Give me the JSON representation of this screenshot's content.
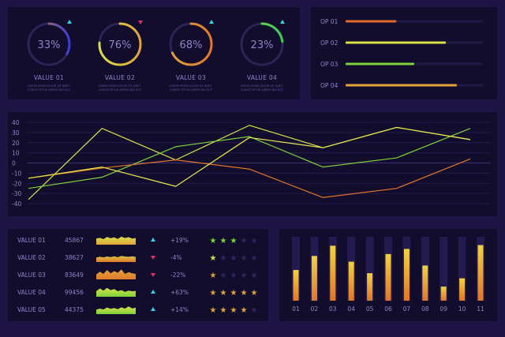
{
  "colors": {
    "background": "#1e1545",
    "panel": "#120d2c",
    "track": "#2b2456",
    "label": "#8d86c9",
    "yellow": "#d8e04a",
    "green": "#7ed23a",
    "orange": "#e2762a",
    "cyan": "#34d3e6",
    "magenta": "#e0306e"
  },
  "gauges": [
    {
      "value_pct": 33,
      "label": "33%",
      "name": "VALUE 01",
      "arrow": "up",
      "caption": "LOREM IPSUM DOLOR SIT AMET, CONSECTETUR ADIPISCING ELIT",
      "gradient": [
        "#3a3fd6",
        "#e07a2a"
      ]
    },
    {
      "value_pct": 76,
      "label": "76%",
      "name": "VALUE 02",
      "arrow": "down",
      "caption": "LOREM IPSUM DOLOR SIT AMET, CONSECTETUR ADIPISCING ELIT",
      "gradient": [
        "#e0a43a",
        "#d8e04a"
      ]
    },
    {
      "value_pct": 68,
      "label": "68%",
      "name": "VALUE 03",
      "arrow": "up",
      "caption": "LOREM IPSUM DOLOR SIT AMET, CONSECTETUR ADIPISCING ELIT",
      "gradient": [
        "#e07a2a",
        "#e0a43a"
      ]
    },
    {
      "value_pct": 23,
      "label": "23%",
      "name": "VALUE 04",
      "arrow": "up",
      "caption": "LOREM IPSUM DOLOR SIT AMET, CONSECTETUR ADIPISCING ELIT",
      "gradient": [
        "#3acd5a",
        "#7ed23a"
      ]
    }
  ],
  "ops": [
    {
      "label": "OP 01",
      "fraction": 0.37,
      "color": "#e06a2a"
    },
    {
      "label": "OP 02",
      "fraction": 0.73,
      "color": "#d8e04a"
    },
    {
      "label": "OP 03",
      "fraction": 0.5,
      "color": "#7ed23a"
    },
    {
      "label": "OP 04",
      "fraction": 0.81,
      "color": "#e0a43a"
    }
  ],
  "chart_data": [
    {
      "type": "line",
      "yticks": [
        "40",
        "30",
        "20",
        "10",
        "0",
        "-10",
        "-20",
        "-30",
        "-40"
      ],
      "ylim": [
        -40,
        40
      ],
      "x": [
        0,
        1,
        2,
        3,
        4,
        5,
        6
      ],
      "grid": true,
      "series": [
        {
          "color": "#d8e04a",
          "values": [
            -36,
            34,
            3,
            37,
            15,
            35,
            23
          ]
        },
        {
          "color": "#7ed23a",
          "values": [
            -25,
            -14,
            16,
            26,
            -4,
            5,
            34
          ]
        },
        {
          "color": "#e2762a",
          "values": [
            -15,
            -5,
            3,
            -6,
            -34,
            -25,
            4
          ]
        },
        {
          "color": "#e8e84e",
          "values": [
            -15,
            -4,
            -23,
            25,
            15,
            35,
            23
          ]
        }
      ]
    },
    {
      "type": "bar",
      "categories": [
        "01",
        "02",
        "03",
        "04",
        "05",
        "06",
        "07",
        "08",
        "09",
        "10",
        "11"
      ],
      "values": [
        0.48,
        0.7,
        0.86,
        0.61,
        0.43,
        0.73,
        0.81,
        0.55,
        0.22,
        0.35,
        0.87
      ],
      "ylim": [
        0,
        1
      ]
    }
  ],
  "table": {
    "rows": [
      {
        "name": "VALUE 01",
        "number": "45867",
        "arrow": "up",
        "change": "+19%",
        "stars": 3,
        "star_color": "#7ed23a",
        "spark": [
          0.55,
          0.62,
          0.5,
          0.7,
          0.58,
          0.66,
          0.52,
          0.72,
          0.6,
          0.68,
          0.55,
          0.6
        ],
        "spark_colors": [
          "#e0a43a",
          "#d8e04a"
        ]
      },
      {
        "name": "VALUE 02",
        "number": "38627",
        "arrow": "down",
        "change": "-4%",
        "stars": 1,
        "star_color": "#d8e04a",
        "spark": [
          0.4,
          0.48,
          0.42,
          0.5,
          0.45,
          0.52,
          0.44,
          0.55,
          0.5,
          0.47,
          0.52,
          0.46
        ],
        "spark_colors": [
          "#e07a2a",
          "#d8c44a"
        ]
      },
      {
        "name": "VALUE 03",
        "number": "83649",
        "arrow": "down",
        "change": "-22%",
        "stars": 1,
        "star_color": "#e0a43a",
        "spark": [
          0.45,
          0.7,
          0.5,
          0.85,
          0.55,
          0.75,
          0.6,
          0.9,
          0.5,
          0.65,
          0.55,
          0.5
        ],
        "spark_colors": [
          "#e07a2a",
          "#e0a43a"
        ]
      },
      {
        "name": "VALUE 04",
        "number": "99456",
        "arrow": "up",
        "change": "+63%",
        "stars": 5,
        "star_color": "#e0a43a",
        "spark": [
          0.5,
          0.75,
          0.55,
          0.8,
          0.6,
          0.7,
          0.5,
          0.6,
          0.45,
          0.55,
          0.5,
          0.52
        ],
        "spark_colors": [
          "#7ed23a",
          "#d8e04a"
        ]
      },
      {
        "name": "VALUE 05",
        "number": "44375",
        "arrow": "up",
        "change": "+14%",
        "stars": 4,
        "star_color": "#e0a43a",
        "spark": [
          0.4,
          0.5,
          0.42,
          0.6,
          0.48,
          0.55,
          0.45,
          0.62,
          0.5,
          0.7,
          0.52,
          0.58
        ],
        "spark_colors": [
          "#7ed23a",
          "#d8e04a"
        ]
      }
    ]
  }
}
